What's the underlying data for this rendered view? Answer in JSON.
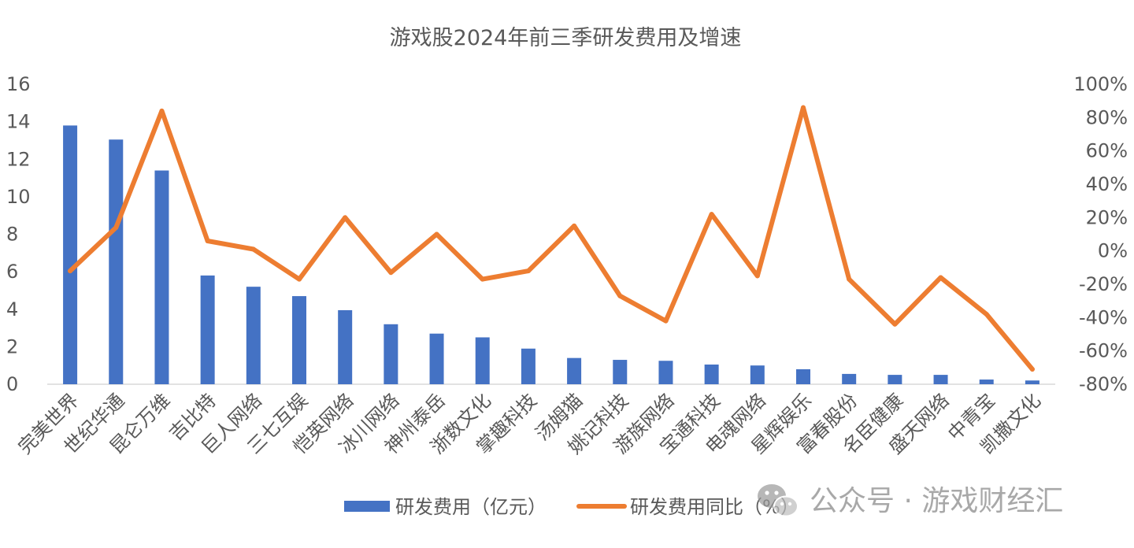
{
  "chart_data": {
    "type": "bar+line",
    "title": "游戏股2024年前三季研发费用及增速",
    "categories": [
      "完美世界",
      "世纪华通",
      "昆仑万维",
      "吉比特",
      "巨人网络",
      "三七互娱",
      "恺英网络",
      "冰川网络",
      "神州泰岳",
      "浙数文化",
      "掌趣科技",
      "汤姆猫",
      "姚记科技",
      "游族网络",
      "宝通科技",
      "电魂网络",
      "星辉娱乐",
      "富春股份",
      "名臣健康",
      "盛天网络",
      "中青宝",
      "凯撒文化"
    ],
    "series": [
      {
        "name": "研发费用（亿元）",
        "type": "bar",
        "axis": "left",
        "color": "#4472C4",
        "values": [
          13.8,
          13.05,
          11.4,
          5.8,
          5.2,
          4.7,
          3.95,
          3.2,
          2.7,
          2.5,
          1.9,
          1.4,
          1.3,
          1.25,
          1.05,
          1.0,
          0.8,
          0.55,
          0.5,
          0.5,
          0.25,
          0.2
        ]
      },
      {
        "name": "研发费用同比（%）",
        "type": "line",
        "axis": "right",
        "color": "#ED7D31",
        "values": [
          -12,
          14,
          84,
          6,
          1,
          -17,
          20,
          -13,
          10,
          -17,
          -12,
          15,
          -27,
          -42,
          22,
          -15,
          86,
          -17,
          -44,
          -16,
          -38,
          -71
        ]
      }
    ],
    "y_left": {
      "min": 0,
      "max": 16,
      "ticks": [
        0,
        2,
        4,
        6,
        8,
        10,
        12,
        14,
        16
      ],
      "tick_labels": [
        "0",
        "2",
        "4",
        "6",
        "8",
        "10",
        "12",
        "14",
        "16"
      ]
    },
    "y_right": {
      "min": -80,
      "max": 100,
      "ticks": [
        -80,
        -60,
        -40,
        -20,
        0,
        20,
        40,
        60,
        80,
        100
      ],
      "tick_labels": [
        "-80%",
        "-60%",
        "-40%",
        "-20%",
        "0%",
        "20%",
        "40%",
        "60%",
        "80%",
        "100%"
      ]
    },
    "grid": false,
    "legend_position": "bottom"
  },
  "watermark": {
    "text": "公众号 · 游戏财经汇",
    "icon": "wechat-icon"
  },
  "colors": {
    "bar": "#4472C4",
    "line": "#ED7D31",
    "text": "#595959",
    "axis": "#D9D9D9"
  }
}
